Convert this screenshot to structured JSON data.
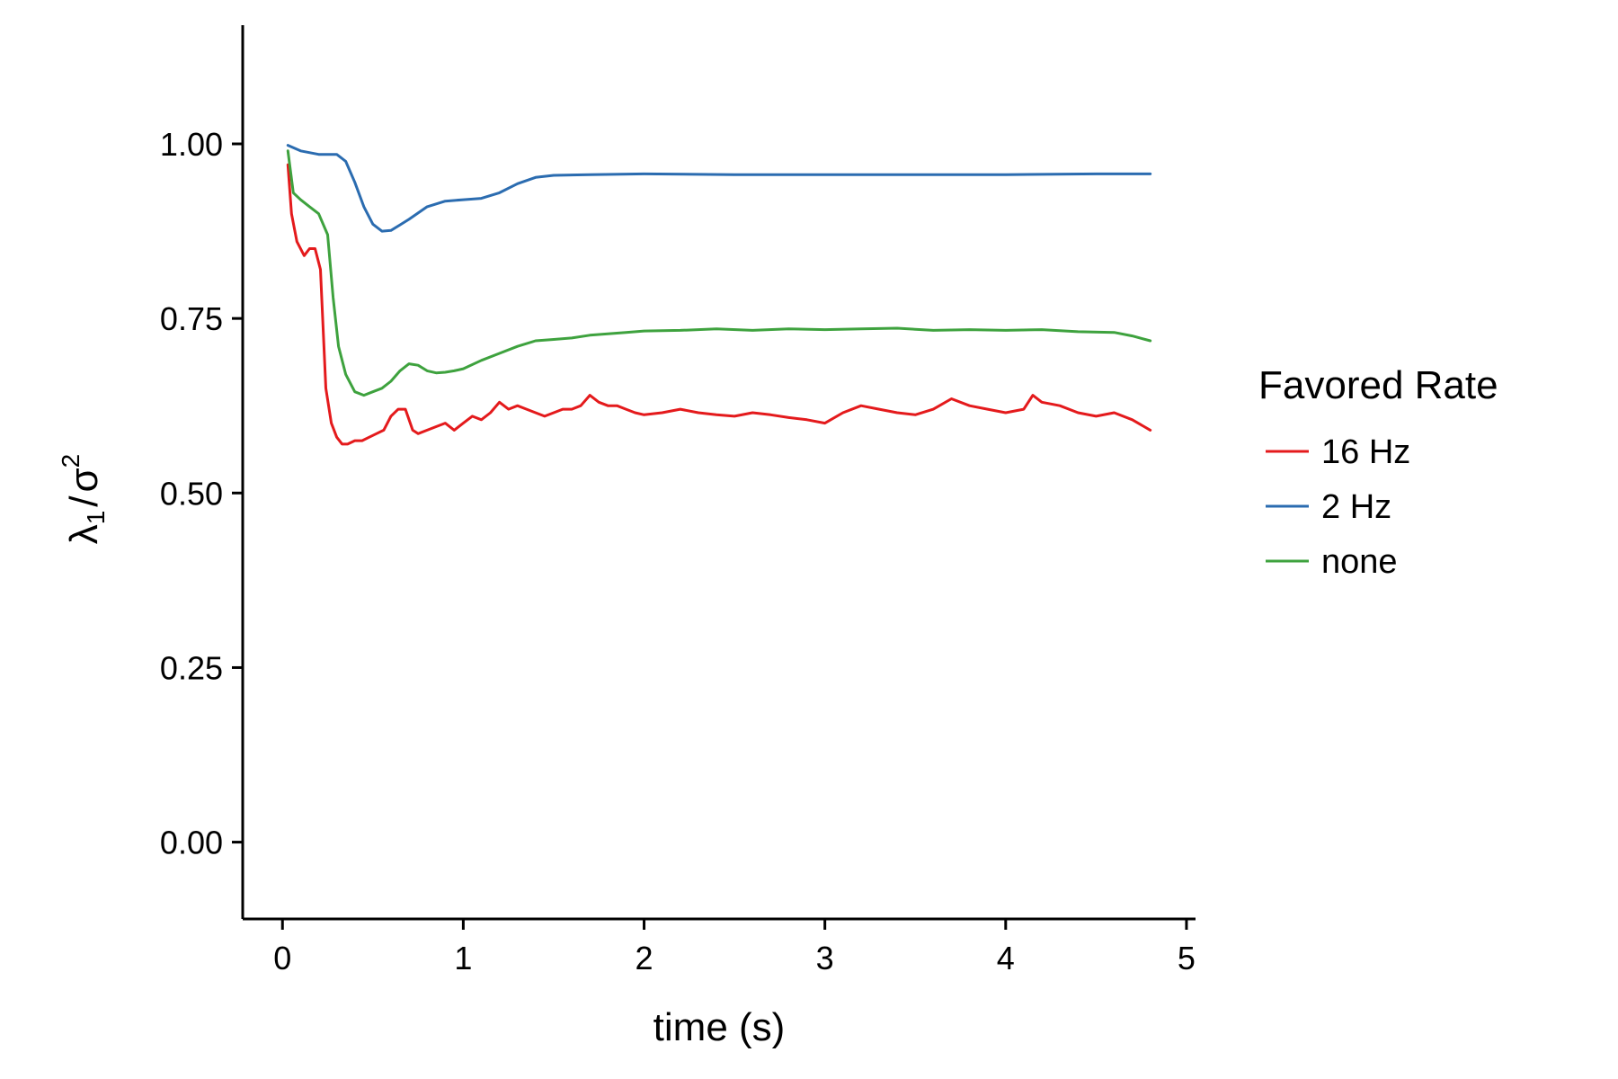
{
  "chart_data": {
    "type": "line",
    "title": "",
    "xlabel": "time (s)",
    "ylabel_main": "λ",
    "ylabel_sub": "1",
    "ylabel_slash": "/",
    "ylabel_denominator": "σ",
    "ylabel_sup": "2",
    "xlim": [
      -0.22,
      5.05
    ],
    "ylim": [
      -0.11,
      1.17
    ],
    "x_ticks": [
      0,
      1,
      2,
      3,
      4,
      5
    ],
    "x_tick_labels": [
      "0",
      "1",
      "2",
      "3",
      "4",
      "5"
    ],
    "y_ticks": [
      0,
      0.25,
      0.5,
      0.75,
      1.0
    ],
    "y_tick_labels": [
      "0.00",
      "0.25",
      "0.50",
      "0.75",
      "1.00"
    ],
    "grid": false,
    "legend": {
      "title": "Favored Rate",
      "position": "right"
    },
    "series": [
      {
        "name": "16 Hz",
        "color": "#e41a1c",
        "x": [
          0.03,
          0.05,
          0.08,
          0.12,
          0.15,
          0.18,
          0.21,
          0.24,
          0.27,
          0.3,
          0.33,
          0.36,
          0.4,
          0.44,
          0.48,
          0.52,
          0.56,
          0.6,
          0.64,
          0.68,
          0.72,
          0.75,
          0.8,
          0.85,
          0.9,
          0.95,
          1.0,
          1.05,
          1.1,
          1.15,
          1.2,
          1.25,
          1.3,
          1.35,
          1.4,
          1.45,
          1.5,
          1.55,
          1.6,
          1.65,
          1.7,
          1.75,
          1.8,
          1.85,
          1.9,
          1.95,
          2.0,
          2.1,
          2.2,
          2.3,
          2.4,
          2.5,
          2.6,
          2.7,
          2.8,
          2.9,
          3.0,
          3.1,
          3.2,
          3.3,
          3.4,
          3.5,
          3.6,
          3.7,
          3.8,
          3.9,
          4.0,
          4.1,
          4.15,
          4.2,
          4.3,
          4.4,
          4.5,
          4.6,
          4.7,
          4.8
        ],
        "y": [
          0.97,
          0.9,
          0.86,
          0.84,
          0.85,
          0.85,
          0.82,
          0.65,
          0.6,
          0.58,
          0.57,
          0.57,
          0.575,
          0.575,
          0.58,
          0.585,
          0.59,
          0.61,
          0.62,
          0.62,
          0.59,
          0.585,
          0.59,
          0.595,
          0.6,
          0.59,
          0.6,
          0.61,
          0.605,
          0.615,
          0.63,
          0.62,
          0.625,
          0.62,
          0.615,
          0.61,
          0.615,
          0.62,
          0.62,
          0.625,
          0.64,
          0.63,
          0.625,
          0.625,
          0.62,
          0.615,
          0.612,
          0.615,
          0.62,
          0.615,
          0.612,
          0.61,
          0.615,
          0.612,
          0.608,
          0.605,
          0.6,
          0.615,
          0.625,
          0.62,
          0.615,
          0.612,
          0.62,
          0.635,
          0.625,
          0.62,
          0.615,
          0.62,
          0.64,
          0.63,
          0.625,
          0.615,
          0.61,
          0.615,
          0.605,
          0.59
        ]
      },
      {
        "name": "2 Hz",
        "color": "#2b6cb0",
        "x": [
          0.03,
          0.1,
          0.2,
          0.3,
          0.35,
          0.4,
          0.45,
          0.5,
          0.55,
          0.6,
          0.65,
          0.7,
          0.8,
          0.9,
          1.0,
          1.1,
          1.2,
          1.3,
          1.4,
          1.5,
          1.7,
          2.0,
          2.5,
          3.0,
          3.5,
          4.0,
          4.5,
          4.8
        ],
        "y": [
          0.998,
          0.99,
          0.985,
          0.985,
          0.975,
          0.945,
          0.91,
          0.885,
          0.875,
          0.876,
          0.884,
          0.892,
          0.91,
          0.918,
          0.92,
          0.922,
          0.93,
          0.943,
          0.952,
          0.955,
          0.956,
          0.957,
          0.956,
          0.956,
          0.956,
          0.956,
          0.957,
          0.957
        ]
      },
      {
        "name": "none",
        "color": "#3ea23e",
        "x": [
          0.03,
          0.06,
          0.1,
          0.15,
          0.2,
          0.25,
          0.28,
          0.31,
          0.35,
          0.4,
          0.45,
          0.5,
          0.55,
          0.6,
          0.65,
          0.7,
          0.75,
          0.8,
          0.85,
          0.9,
          0.95,
          1.0,
          1.1,
          1.2,
          1.3,
          1.4,
          1.5,
          1.6,
          1.7,
          1.8,
          1.9,
          2.0,
          2.2,
          2.4,
          2.6,
          2.8,
          3.0,
          3.2,
          3.4,
          3.6,
          3.8,
          4.0,
          4.2,
          4.4,
          4.6,
          4.7,
          4.8
        ],
        "y": [
          0.99,
          0.93,
          0.92,
          0.91,
          0.9,
          0.87,
          0.78,
          0.71,
          0.67,
          0.645,
          0.64,
          0.645,
          0.65,
          0.66,
          0.675,
          0.685,
          0.683,
          0.675,
          0.672,
          0.673,
          0.675,
          0.678,
          0.69,
          0.7,
          0.71,
          0.718,
          0.72,
          0.722,
          0.726,
          0.728,
          0.73,
          0.732,
          0.733,
          0.735,
          0.733,
          0.735,
          0.734,
          0.735,
          0.736,
          0.733,
          0.734,
          0.733,
          0.734,
          0.731,
          0.73,
          0.725,
          0.718
        ]
      }
    ]
  }
}
